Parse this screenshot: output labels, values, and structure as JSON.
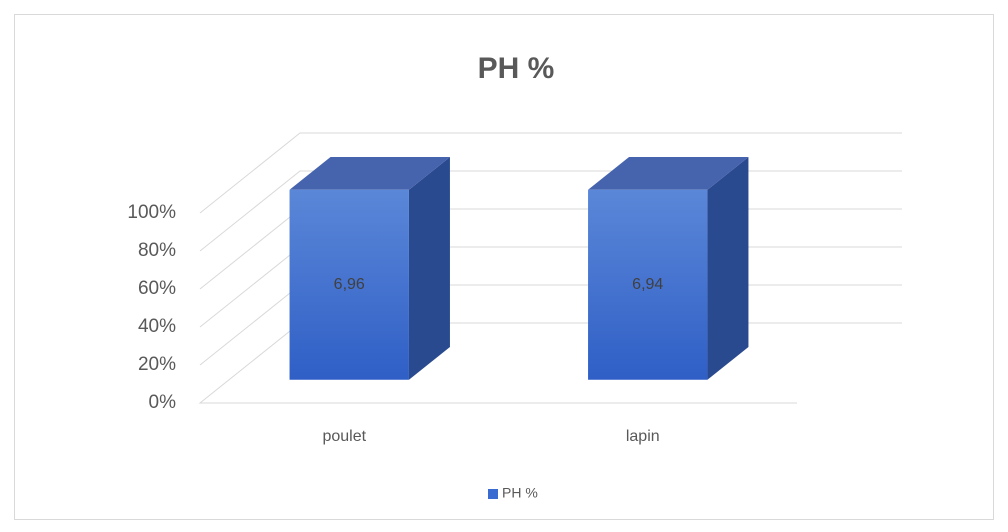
{
  "chart_data": {
    "type": "bar3d",
    "title": "PH %",
    "stacking": "percent",
    "categories": [
      "poulet",
      "lapin"
    ],
    "series": [
      {
        "name": "PH %",
        "color": "#3a6bd0",
        "values": [
          6.96,
          6.94
        ],
        "value_labels": [
          "6,96",
          "6,94"
        ]
      }
    ],
    "ylim": [
      0,
      100
    ],
    "yticks": [
      {
        "value": 0,
        "label": "0%"
      },
      {
        "value": 20,
        "label": "20%"
      },
      {
        "value": 40,
        "label": "40%"
      },
      {
        "value": 60,
        "label": "60%"
      },
      {
        "value": 80,
        "label": "80%"
      },
      {
        "value": 100,
        "label": "100%"
      }
    ],
    "grid": true,
    "legend": "bottom"
  }
}
